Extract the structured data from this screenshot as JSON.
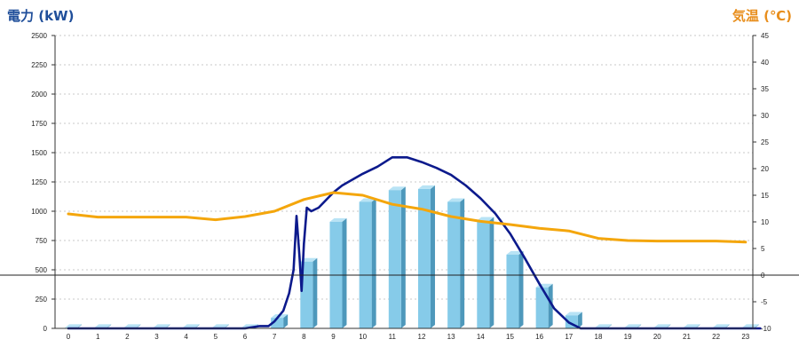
{
  "chart_data": {
    "type": "bar+line",
    "y_left_label": "電力 (kW)",
    "y_right_label": "気温 (℃)",
    "x_categories": [
      "0",
      "1",
      "2",
      "3",
      "4",
      "5",
      "6",
      "7",
      "8",
      "9",
      "10",
      "11",
      "12",
      "13",
      "14",
      "15",
      "16",
      "17",
      "18",
      "19",
      "20",
      "21",
      "22",
      "23"
    ],
    "ylim_left": [
      0,
      2500
    ],
    "yticks_left": [
      "0",
      "250",
      "500",
      "750",
      "1000",
      "1250",
      "1500",
      "1750",
      "2000",
      "2250",
      "2500"
    ],
    "ylim_right": [
      -10,
      45
    ],
    "yticks_right": [
      "-10",
      "-5",
      "0",
      "5",
      "10",
      "15",
      "20",
      "25",
      "30",
      "35",
      "40",
      "45"
    ],
    "grid": true,
    "bars": {
      "name": "",
      "values": [
        5,
        5,
        5,
        5,
        5,
        5,
        5,
        90,
        570,
        910,
        1080,
        1180,
        1190,
        1080,
        920,
        630,
        350,
        110,
        5,
        5,
        5,
        5,
        5,
        5
      ]
    },
    "power_line": {
      "name": "",
      "axis": "left",
      "x": [
        0,
        6,
        6.5,
        6.8,
        7.0,
        7.3,
        7.5,
        7.65,
        7.75,
        7.85,
        7.92,
        8.0,
        8.1,
        8.25,
        8.5,
        9.0,
        9.3,
        10.0,
        10.5,
        11.0,
        11.5,
        12.0,
        12.5,
        13.0,
        13.5,
        14.0,
        14.5,
        15.0,
        15.5,
        16.0,
        16.5,
        17.0,
        17.4,
        23.5
      ],
      "y": [
        0,
        0,
        20,
        20,
        60,
        150,
        300,
        500,
        960,
        620,
        320,
        720,
        1030,
        1000,
        1030,
        1160,
        1220,
        1320,
        1380,
        1460,
        1460,
        1420,
        1370,
        1310,
        1220,
        1110,
        980,
        810,
        600,
        380,
        170,
        50,
        0,
        0
      ]
    },
    "temp_line": {
      "name": "",
      "axis": "right",
      "x": [
        0,
        1,
        2,
        3,
        4,
        5,
        6,
        7,
        8,
        9,
        10,
        11,
        12,
        13,
        14,
        15,
        16,
        17,
        18,
        19,
        20,
        21,
        22,
        23
      ],
      "y": [
        11.5,
        10.9,
        10.9,
        10.9,
        10.9,
        10.4,
        11.0,
        12.0,
        14.2,
        15.5,
        15.0,
        13.3,
        12.4,
        11.0,
        10.1,
        9.5,
        8.8,
        8.3,
        6.9,
        6.5,
        6.4,
        6.4,
        6.4,
        6.2
      ]
    }
  },
  "colors": {
    "left_title": "#1f4e9a",
    "right_title": "#e88e1c",
    "bar_front": "#86cbe9",
    "bar_side": "#4e98bb",
    "bar_top": "#b8e3f5",
    "power_line": "#0c1a8c",
    "temp_line": "#f4a60c",
    "grid": "#c8c8c8",
    "zero_line": "#222222"
  }
}
